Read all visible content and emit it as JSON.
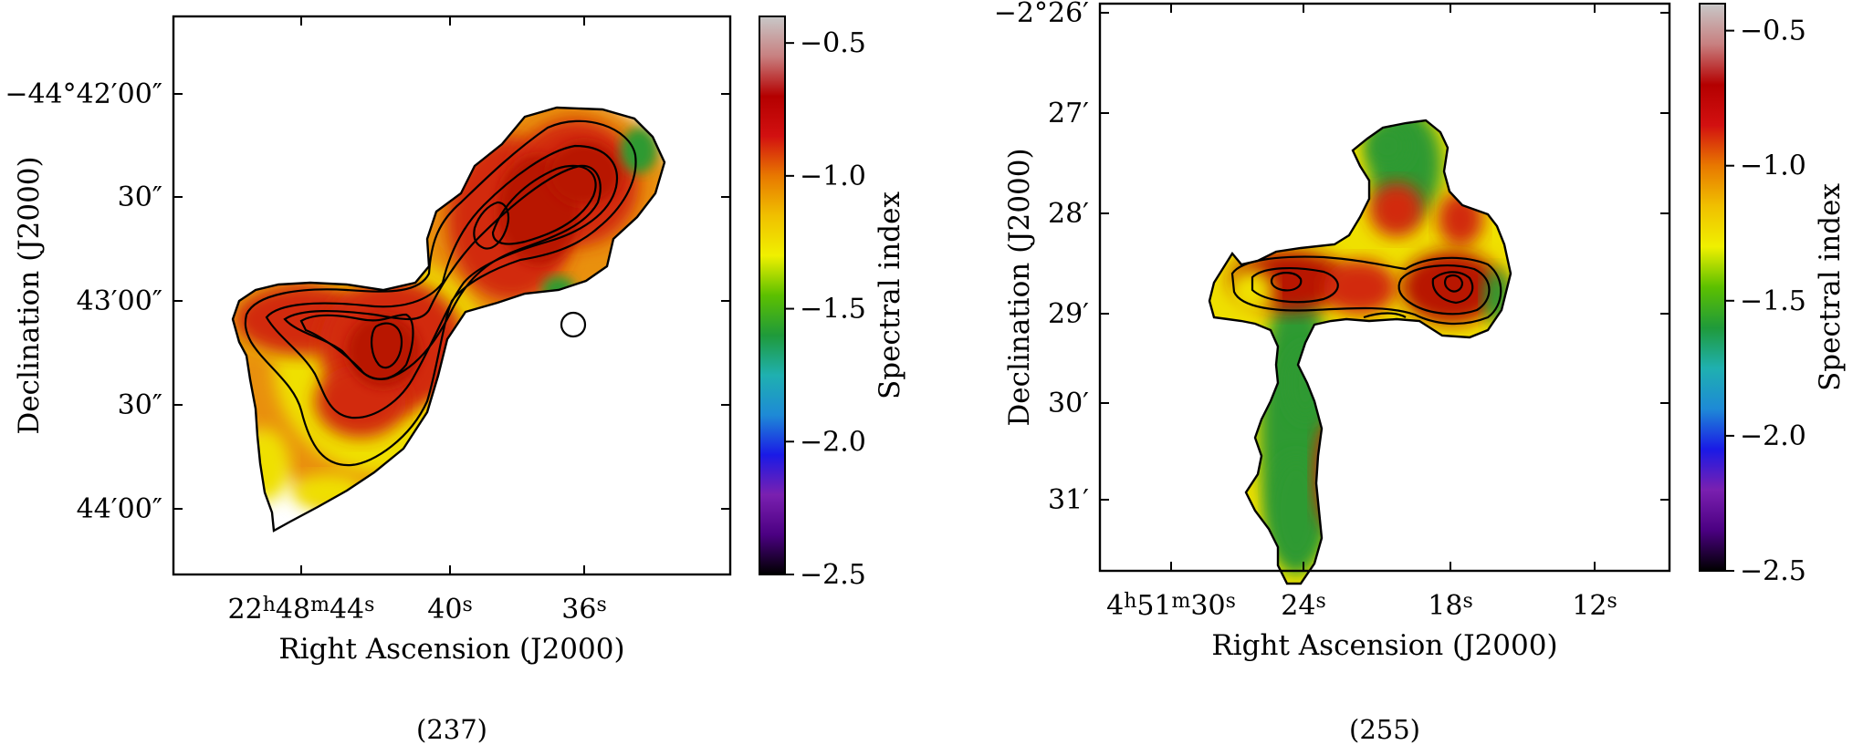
{
  "chart_data": [
    {
      "type": "heatmap",
      "title": "",
      "caption": "(237)",
      "xlabel": "Right Ascension (J2000)",
      "ylabel": "Declination (J2000)",
      "x_ticks": [
        {
          "label": "22h48m44s",
          "parts": [
            "22",
            "h",
            "48",
            "m",
            "44",
            "s"
          ]
        },
        {
          "label": "40s",
          "parts": [
            "40",
            "s"
          ]
        },
        {
          "label": "36s",
          "parts": [
            "36",
            "s"
          ]
        }
      ],
      "y_ticks": [
        "−44°42′00″",
        "30″",
        "43′00″",
        "30″",
        "44′00″"
      ],
      "colorbar": {
        "label": "Spectral index",
        "range": [
          -2.5,
          -0.4
        ],
        "ticks": [
          {
            "value": -0.5,
            "label": "−0.5"
          },
          {
            "value": -1.0,
            "label": "−1.0"
          },
          {
            "value": -1.5,
            "label": "−1.5"
          },
          {
            "value": -2.0,
            "label": "−2.0"
          },
          {
            "value": -2.5,
            "label": "−2.5"
          }
        ]
      },
      "description_of_data": "spectral index map; lobes mostly -0.5 to -0.8, edges -1.0 to -1.8, black contours of radio intensity"
    },
    {
      "type": "heatmap",
      "title": "",
      "caption": "(255)",
      "xlabel": "Right Ascension (J2000)",
      "ylabel": "Declination (J2000)",
      "x_ticks": [
        {
          "label": "4h51m30s",
          "parts": [
            "4",
            "h",
            "51",
            "m",
            "30",
            "s"
          ]
        },
        {
          "label": "24s",
          "parts": [
            "24",
            "s"
          ]
        },
        {
          "label": "18s",
          "parts": [
            "18",
            "s"
          ]
        },
        {
          "label": "12s",
          "parts": [
            "12",
            "s"
          ]
        }
      ],
      "y_ticks": [
        "−2°26′",
        "27′",
        "28′",
        "29′",
        "30′",
        "31′"
      ],
      "colorbar": {
        "label": "Spectral index",
        "range": [
          -2.5,
          -0.4
        ],
        "ticks": [
          {
            "value": -0.5,
            "label": "−0.5"
          },
          {
            "value": -1.0,
            "label": "−1.0"
          },
          {
            "value": -1.5,
            "label": "−1.5"
          },
          {
            "value": -2.0,
            "label": "−2.0"
          },
          {
            "value": -2.5,
            "label": "−2.5"
          }
        ]
      },
      "description_of_data": "X-shaped source; horizontal lobes red (-0.5 to -0.7), vertical wings mixed yellow/green (-1.0 to -1.6), contours on the horizontal lobes"
    }
  ],
  "colors": {
    "colormap": [
      "#000000",
      "#4b0082",
      "#7a20b0",
      "#1a1ae6",
      "#1e8ad6",
      "#1fb0b0",
      "#1f9a3a",
      "#5cc000",
      "#f0f000",
      "#f0c000",
      "#e87800",
      "#d21010",
      "#b40000",
      "#c88080",
      "#c8c8c8"
    ],
    "deep_red": "#b81200",
    "red": "#d22a0a",
    "orange": "#e99010",
    "yellow": "#efe000",
    "green": "#2e9a30",
    "contour": "#000000"
  }
}
